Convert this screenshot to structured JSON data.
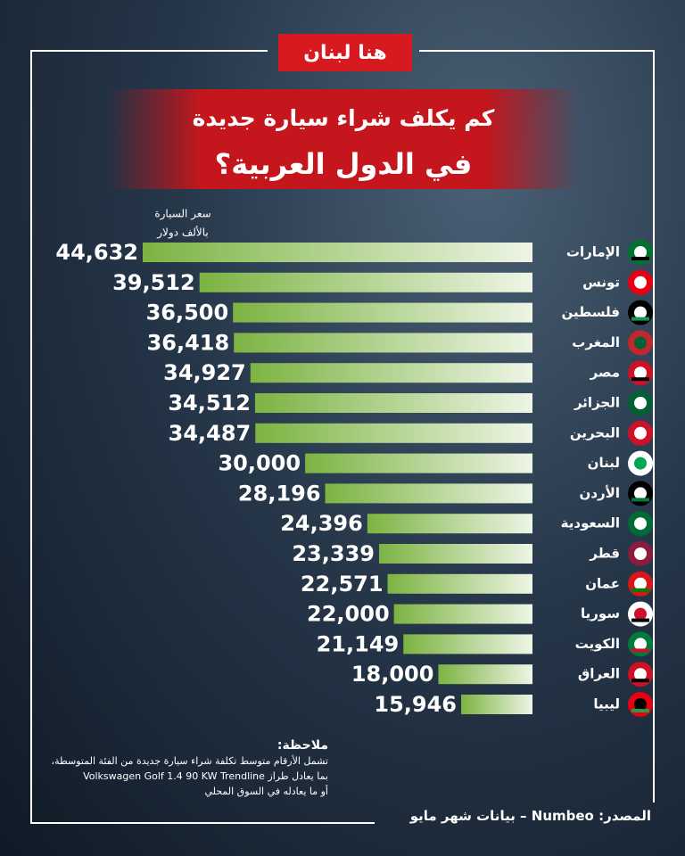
{
  "header": {
    "logo": "هنا لبنان"
  },
  "chart_data": {
    "type": "bar",
    "title": "كم يكلف شراء سيارة جديدة",
    "subtitle": "في الدول العربية؟",
    "value_axis_label": [
      "سعر السيارة",
      "بالألف دولار"
    ],
    "categories": [
      "الإمارات",
      "تونس",
      "فلسطين",
      "المغرب",
      "مصر",
      "الجزائر",
      "البحرين",
      "لبنان",
      "الأردن",
      "السعودية",
      "قطر",
      "عمان",
      "سوريا",
      "الكويت",
      "العراق",
      "ليبيا"
    ],
    "values": [
      44632,
      39512,
      36500,
      36418,
      34927,
      34512,
      34487,
      30000,
      28196,
      24396,
      23339,
      22571,
      22000,
      21149,
      18000,
      15946
    ],
    "value_labels": [
      "44,632",
      "39,512",
      "36,500",
      "36,418",
      "34,927",
      "34,512",
      "34,487",
      "30,000",
      "28,196",
      "24,396",
      "23,339",
      "22,571",
      "22,000",
      "21,149",
      "18,000",
      "15,946"
    ],
    "color": "#7cb342"
  },
  "note": {
    "title": "ملاحظة:",
    "lines": [
      "تشمل الأرقام متوسط تكلفة شراء سيارة جديدة من الفئة المتوسطة،",
      "بما يعادل طراز Volkswagen Golf 1.4 90 KW Trendline",
      "أو ما يعادله في السوق المحلي"
    ]
  },
  "source": "المصدر: Numbeo – بيانات شهر مايو"
}
